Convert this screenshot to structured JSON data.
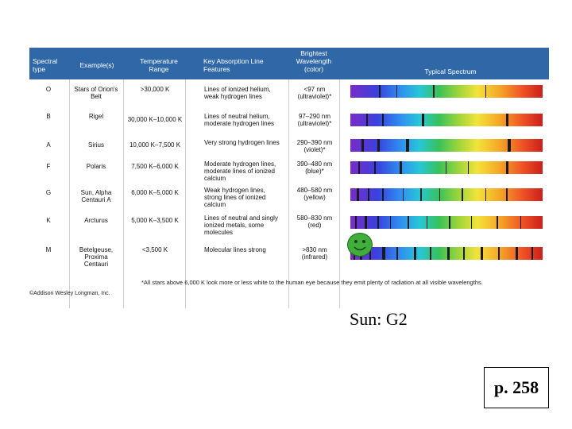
{
  "header": {
    "spectral_type": "Spectral type",
    "examples": "Example(s)",
    "temperature": "Temperature Range",
    "absorption": "Key Absorption Line Features",
    "wavelength": "Brightest Wavelength (color)",
    "spectrum": "Typical Spectrum"
  },
  "rows": [
    {
      "type": "O",
      "example": "Stars of Orion's Belt",
      "temp": ">30,000 K",
      "features": "Lines of ionized helium, weak hydrogen lines",
      "wavelength": "<97 nm (ultraviolet)*"
    },
    {
      "type": "B",
      "example": "Rigel",
      "temp": "30,000 K–10,000 K",
      "features": "Lines of neutral helium, moderate hydrogen lines",
      "wavelength": "97–290 nm (ultraviolet)*"
    },
    {
      "type": "A",
      "example": "Sirius",
      "temp": "10,000 K–7,500 K",
      "features": "Very strong hydrogen lines",
      "wavelength": "290–390 nm (violet)*"
    },
    {
      "type": "F",
      "example": "Polaris",
      "temp": "7,500 K–6,000 K",
      "features": "Moderate hydrogen lines, moderate lines of ionized calcium",
      "wavelength": "390–480 nm (blue)*"
    },
    {
      "type": "G",
      "example": "Sun, Alpha Centauri A",
      "temp": "6,000 K–5,000 K",
      "features": "Weak hydrogen lines, strong lines of ionized calcium",
      "wavelength": "480–580 nm (yellow)"
    },
    {
      "type": "K",
      "example": "Arcturus",
      "temp": "5,000 K–3,500 K",
      "features": "Lines of neutral and singly ionized metals, some molecules",
      "wavelength": "580–830 nm (red)"
    },
    {
      "type": "M",
      "example": "Betelgeuse, Proxima Centauri",
      "temp": "<3,500 K",
      "features": "Molecular lines strong",
      "wavelength": ">830 nm (infrared)"
    }
  ],
  "footnote": "*All stars above 6,000 K look more or less white to the human eye because they emit plenty of radiation at all visible wavelengths.",
  "copyright": "©Addison Wesley Longman, Inc.",
  "sun_label": "Sun:  G2",
  "page_ref": "p. 258",
  "colors": {
    "header_bg": "#2f67a7",
    "smiley": "#3fae3a"
  }
}
